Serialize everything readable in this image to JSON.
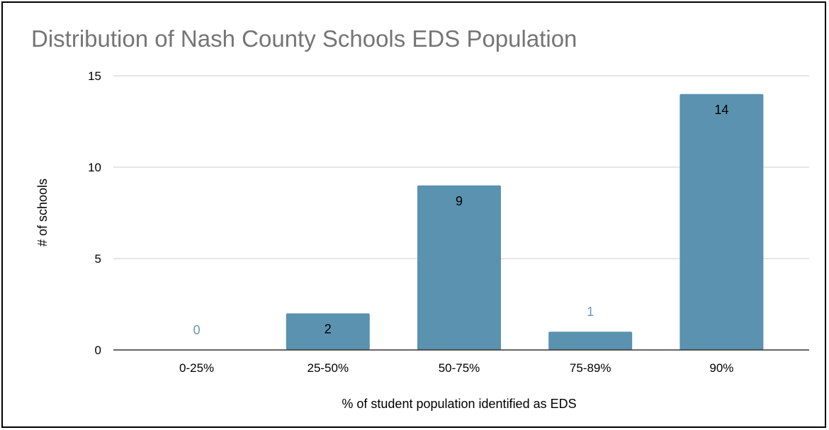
{
  "chart_data": {
    "type": "bar",
    "title": "Distribution of Nash County Schools EDS Population",
    "xlabel": "% of student population identified as EDS",
    "ylabel": "# of schools",
    "categories": [
      "0-25%",
      "25-50%",
      "50-75%",
      "75-89%",
      "90%"
    ],
    "values": [
      0,
      2,
      9,
      1,
      14
    ],
    "ylim": [
      0,
      15
    ],
    "yticks": [
      0,
      5,
      10,
      15
    ],
    "grid": true,
    "data_labels": true,
    "colors": {
      "bar": "#5a92af",
      "label_inside": "#000000",
      "label_outside": "#6a9ab5",
      "grid": "#cccccc",
      "axis": "#333333",
      "title": "#757575"
    }
  }
}
